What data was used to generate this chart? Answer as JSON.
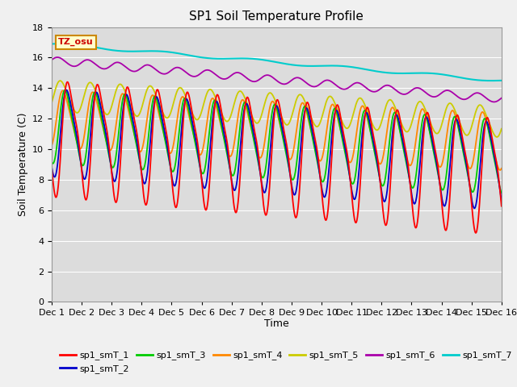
{
  "title": "SP1 Soil Temperature Profile",
  "xlabel": "Time",
  "ylabel": "Soil Temperature (C)",
  "ylim": [
    0,
    18
  ],
  "yticks": [
    0,
    2,
    4,
    6,
    8,
    10,
    12,
    14,
    16,
    18
  ],
  "tz_label": "TZ_osu",
  "x_tick_labels": [
    "Dec 1",
    "Dec 2",
    "Dec 3",
    "Dec 4",
    "Dec 5",
    "Dec 6",
    "Dec 7",
    "Dec 8",
    "Dec 9",
    "Dec 10",
    "Dec 11",
    "Dec 12",
    "Dec 13",
    "Dec 14",
    "Dec 15",
    "Dec 16"
  ],
  "series_colors": {
    "sp1_smT_1": "#ff0000",
    "sp1_smT_2": "#0000cc",
    "sp1_smT_3": "#00cc00",
    "sp1_smT_4": "#ff8800",
    "sp1_smT_5": "#cccc00",
    "sp1_smT_6": "#aa00aa",
    "sp1_smT_7": "#00cccc"
  },
  "plot_bg_color": "#dcdcdc",
  "fig_bg_color": "#f0f0f0",
  "days": 15,
  "n_points": 1500
}
